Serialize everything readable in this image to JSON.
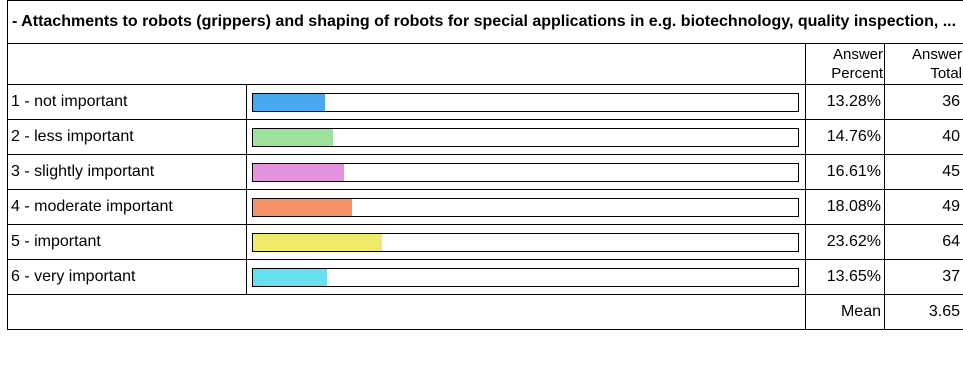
{
  "title": "- Attachments to robots (grippers) and shaping of robots for special applications in e.g. biotechnology, quality inspection, ...",
  "headers": {
    "percent": "Answer Percent",
    "total": "Answer Total"
  },
  "chart_data": {
    "type": "bar",
    "orientation": "horizontal",
    "categories": [
      "1 - not important",
      "2 - less important",
      "3 - slightly important",
      "4 - moderate important",
      "5 - important",
      "6 - very important"
    ],
    "values": [
      13.28,
      14.76,
      16.61,
      18.08,
      23.62,
      13.65
    ],
    "percent_labels": [
      "13.28%",
      "14.76%",
      "16.61%",
      "18.08%",
      "23.62%",
      "13.65%"
    ],
    "totals": [
      "36",
      "40",
      "45",
      "49",
      "64",
      "37"
    ],
    "colors": [
      "#4aa8f0",
      "#9ee39b",
      "#e493e0",
      "#f49466",
      "#eeea6a",
      "#67e1ee"
    ],
    "xlim": [
      0,
      100
    ]
  },
  "mean": {
    "label": "Mean",
    "value": "3.65"
  }
}
